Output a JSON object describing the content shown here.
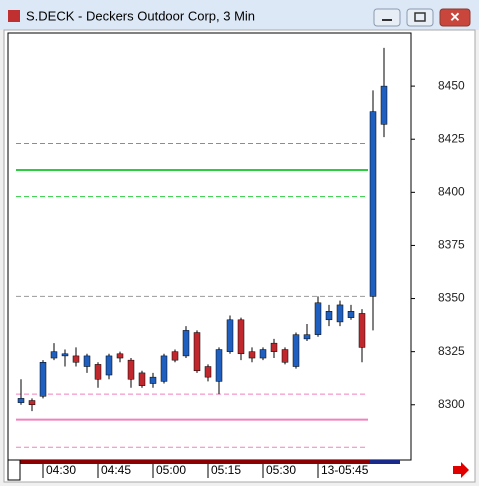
{
  "window": {
    "title": "S.DECK - Deckers Outdoor Corp, 3 Min"
  },
  "chart_data": {
    "type": "candlestick",
    "categories": [
      null,
      null,
      "04:30",
      null,
      null,
      null,
      null,
      "04:45",
      null,
      null,
      null,
      null,
      "05:00",
      null,
      null,
      null,
      null,
      "05:15",
      null,
      null,
      null,
      null,
      "05:30",
      null,
      null,
      null,
      null,
      "13-05:45",
      null,
      null,
      null,
      null,
      null,
      null
    ],
    "open": [
      8301,
      8302,
      8304,
      8322,
      8323,
      8323,
      8318,
      8319,
      8314,
      8324,
      8321,
      8315,
      8310,
      8311,
      8325,
      8323,
      8334,
      8318,
      8311,
      8325,
      8340,
      8325,
      8322,
      8329,
      8326,
      8318,
      8331,
      8333,
      8340,
      8339,
      8341,
      8343,
      8351,
      8432
    ],
    "high": [
      8312,
      8303,
      8321,
      8329,
      8326,
      8327,
      8324,
      8320,
      8324,
      8325,
      8322,
      8316,
      8315,
      8324,
      8326,
      8337,
      8335,
      8319,
      8327,
      8342,
      8341,
      8327,
      8327,
      8331,
      8327,
      8334,
      8338,
      8351,
      8347,
      8349,
      8347,
      8345,
      8448,
      8468
    ],
    "low": [
      8300,
      8297,
      8303,
      8321,
      8318,
      8318,
      8315,
      8308,
      8312,
      8320,
      8308,
      8308,
      8308,
      8310,
      8320,
      8322,
      8315,
      8311,
      8305,
      8324,
      8321,
      8320,
      8321,
      8322,
      8319,
      8317,
      8330,
      8332,
      8337,
      8337,
      8340,
      8320,
      8335,
      8426
    ],
    "close": [
      8303,
      8300,
      8320,
      8325,
      8324,
      8320,
      8323,
      8312,
      8323,
      8322,
      8312,
      8309,
      8313,
      8323,
      8321,
      8335,
      8316,
      8313,
      8326,
      8340,
      8324,
      8322,
      8326,
      8325,
      8320,
      8333,
      8333,
      8348,
      8344,
      8347,
      8344,
      8327,
      8438,
      8450
    ],
    "up_color": "#1f5fbf",
    "down_color": "#c0282d",
    "levels": [
      {
        "value": 8423,
        "color": "#2ecc40",
        "dashed": true
      },
      {
        "value": 8410.5,
        "color": "#2ecc40",
        "dashed": false
      },
      {
        "value": 8398,
        "color": "#2ecc40",
        "dashed": true
      },
      {
        "value": 8351,
        "color": "#999999",
        "dashed": true
      },
      {
        "value": 8305,
        "color": "#f080c0",
        "dashed": true
      },
      {
        "value": 8293,
        "color": "#f080c0",
        "dashed": false
      },
      {
        "value": 8280,
        "color": "#f080c0",
        "dashed": true
      }
    ],
    "ylim": [
      8274,
      8475
    ],
    "yticks": [
      8300,
      8325,
      8350,
      8375,
      8400,
      8425,
      8450
    ]
  }
}
